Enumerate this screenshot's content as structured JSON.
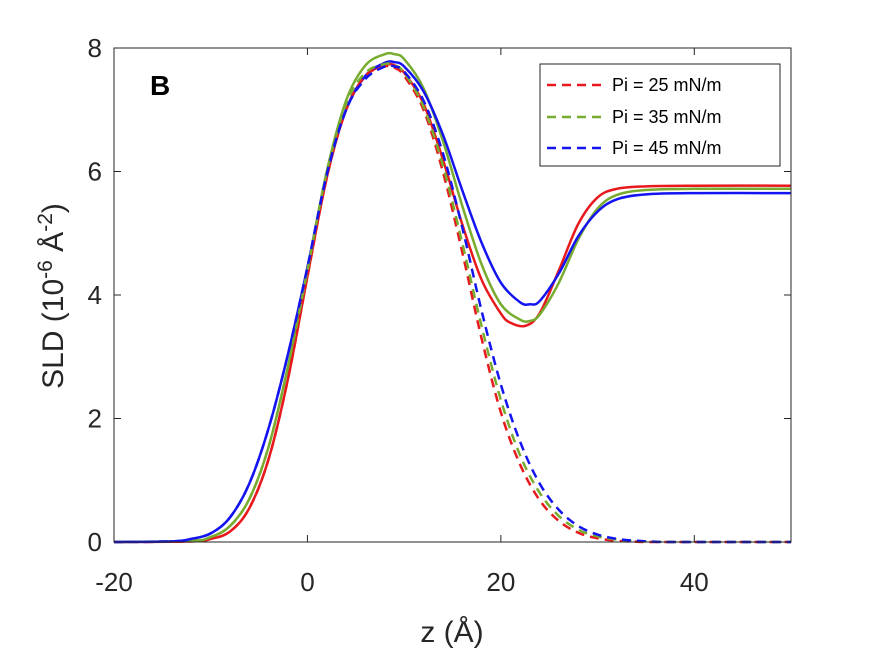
{
  "chart_data": {
    "type": "line",
    "panel_label": "B",
    "xlabel": "z   (Å)",
    "ylabel": "SLD   (10",
    "ylabel_exp1": "-6",
    "ylabel_mid": " Å",
    "ylabel_exp2": "-2",
    "ylabel_end": ")",
    "xlim": [
      -20,
      50
    ],
    "ylim": [
      0,
      8
    ],
    "xticks": [
      -20,
      0,
      20,
      40
    ],
    "yticks": [
      0,
      2,
      4,
      6,
      8
    ],
    "xtick_labels": [
      "-20",
      "0",
      "20",
      "40"
    ],
    "ytick_labels": [
      "0",
      "2",
      "4",
      "6",
      "8"
    ],
    "legend_position": "top-right",
    "legend": [
      "Pi = 25 mN/m",
      "Pi = 35 mN/m",
      "Pi = 45 mN/m"
    ],
    "series": [
      {
        "name": "Pi = 25 mN/m (solid)",
        "color": "#e8191c",
        "style": "solid",
        "x": [
          -20,
          -12,
          -10,
          -8,
          -6,
          -4,
          -2,
          0,
          2,
          4,
          6,
          8,
          9,
          10,
          12,
          14,
          16,
          18,
          20,
          21,
          22.5,
          24,
          26,
          28,
          30,
          32,
          35,
          40,
          50
        ],
        "y": [
          0,
          0.01,
          0.05,
          0.17,
          0.55,
          1.35,
          2.65,
          4.3,
          5.9,
          7.0,
          7.55,
          7.72,
          7.72,
          7.6,
          7.1,
          6.2,
          5.15,
          4.25,
          3.7,
          3.55,
          3.5,
          3.7,
          4.4,
          5.15,
          5.58,
          5.72,
          5.76,
          5.77,
          5.77
        ]
      },
      {
        "name": "Pi = 35 mN/m (solid)",
        "color": "#77ac30",
        "style": "solid",
        "x": [
          -20,
          -12,
          -10,
          -8,
          -6,
          -4,
          -2,
          0,
          2,
          4,
          6,
          8,
          9,
          10,
          12,
          14,
          16,
          18,
          20,
          22,
          23,
          24,
          26,
          28,
          30,
          32,
          35,
          40,
          50
        ],
        "y": [
          0,
          0.02,
          0.08,
          0.26,
          0.7,
          1.55,
          2.85,
          4.4,
          6.0,
          7.15,
          7.72,
          7.9,
          7.9,
          7.82,
          7.35,
          6.5,
          5.45,
          4.5,
          3.85,
          3.6,
          3.58,
          3.68,
          4.2,
          4.9,
          5.4,
          5.62,
          5.7,
          5.72,
          5.72
        ]
      },
      {
        "name": "Pi = 45 mN/m (solid)",
        "color": "#1414f0",
        "style": "solid",
        "x": [
          -20,
          -14,
          -12,
          -10,
          -8,
          -6,
          -4,
          -2,
          0,
          2,
          4,
          6,
          8,
          9,
          10,
          12,
          14,
          16,
          18,
          20,
          22,
          23,
          24,
          26,
          28,
          30,
          32,
          35,
          40,
          50
        ],
        "y": [
          0,
          0.01,
          0.05,
          0.14,
          0.4,
          0.95,
          1.85,
          3.05,
          4.45,
          5.95,
          7.0,
          7.55,
          7.76,
          7.77,
          7.7,
          7.3,
          6.6,
          5.7,
          4.85,
          4.2,
          3.88,
          3.85,
          3.9,
          4.35,
          4.95,
          5.35,
          5.55,
          5.63,
          5.65,
          5.65
        ]
      },
      {
        "name": "Pi = 25 mN/m",
        "color": "#e8191c",
        "style": "dashed",
        "x": [
          -20,
          -12,
          -10,
          -8,
          -6,
          -4,
          -2,
          0,
          2,
          4,
          6,
          8,
          9,
          10,
          12,
          14,
          16,
          18,
          20,
          22,
          24,
          26,
          28,
          30,
          32,
          34,
          36,
          50
        ],
        "y": [
          0,
          0.01,
          0.05,
          0.17,
          0.55,
          1.35,
          2.65,
          4.3,
          5.9,
          7.0,
          7.55,
          7.7,
          7.68,
          7.55,
          7.0,
          6.0,
          4.7,
          3.3,
          2.1,
          1.25,
          0.68,
          0.34,
          0.15,
          0.06,
          0.02,
          0.005,
          0,
          0
        ]
      },
      {
        "name": "Pi = 35 mN/m",
        "color": "#77ac30",
        "style": "dashed",
        "x": [
          -20,
          -12,
          -10,
          -8,
          -6,
          -4,
          -2,
          0,
          2,
          4,
          6,
          8,
          9,
          10,
          12,
          14,
          16,
          18,
          20,
          22,
          24,
          26,
          28,
          30,
          32,
          34,
          36,
          38,
          50
        ],
        "y": [
          0,
          0.02,
          0.08,
          0.26,
          0.7,
          1.55,
          2.85,
          4.4,
          6.0,
          7.1,
          7.6,
          7.74,
          7.72,
          7.6,
          7.05,
          6.1,
          4.85,
          3.5,
          2.3,
          1.4,
          0.8,
          0.42,
          0.2,
          0.09,
          0.04,
          0.015,
          0.005,
          0,
          0
        ]
      },
      {
        "name": "Pi = 45 mN/m",
        "color": "#1414f0",
        "style": "dashed",
        "x": [
          -20,
          -14,
          -12,
          -10,
          -8,
          -6,
          -4,
          -2,
          0,
          2,
          4,
          6,
          8,
          9,
          10,
          12,
          14,
          16,
          18,
          20,
          22,
          24,
          26,
          28,
          30,
          32,
          34,
          36,
          38,
          50
        ],
        "y": [
          0,
          0.01,
          0.05,
          0.14,
          0.4,
          0.95,
          1.85,
          3.05,
          4.45,
          5.95,
          7.0,
          7.5,
          7.7,
          7.7,
          7.62,
          7.15,
          6.3,
          5.1,
          3.75,
          2.55,
          1.62,
          0.95,
          0.52,
          0.26,
          0.12,
          0.05,
          0.02,
          0.005,
          0,
          0
        ]
      }
    ]
  }
}
